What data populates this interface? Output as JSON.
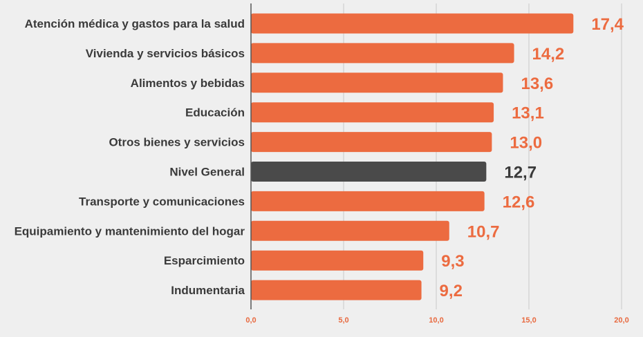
{
  "chart_data": {
    "type": "bar",
    "orientation": "horizontal",
    "categories": [
      "Atención médica y gastos para la salud",
      "Vivienda y servicios básicos",
      "Alimentos y  bebidas",
      "Educación",
      "Otros bienes y servicios",
      "Nivel General",
      "Transporte y comunicaciones",
      "Equipamiento y mantenimiento del hogar",
      "Esparcimiento",
      "Indumentaria"
    ],
    "values": [
      17.4,
      14.2,
      13.6,
      13.1,
      13.0,
      12.7,
      12.6,
      10.7,
      9.3,
      9.2
    ],
    "value_labels": [
      "17,4",
      "14,2",
      "13,6",
      "13,1",
      "13,0",
      "12,7",
      "12,6",
      "10,7",
      "9,3",
      "9,2"
    ],
    "highlight_category": "Nivel General",
    "xlim": [
      0,
      20
    ],
    "xticks": [
      0,
      5,
      10,
      15,
      20
    ],
    "xtick_labels": [
      "0,0",
      "5,0",
      "10,0",
      "15,0",
      "20,0"
    ],
    "title": "",
    "xlabel": "",
    "ylabel": "",
    "grid": "vertical",
    "legend": "none"
  },
  "colors": {
    "bar": "#ec6b40",
    "highlight_bar": "#4a4a4a",
    "value_label": "#ec6b40",
    "highlight_value_label": "#3a3a3a",
    "tick_label": "#e8693f",
    "background": "#efefef"
  }
}
